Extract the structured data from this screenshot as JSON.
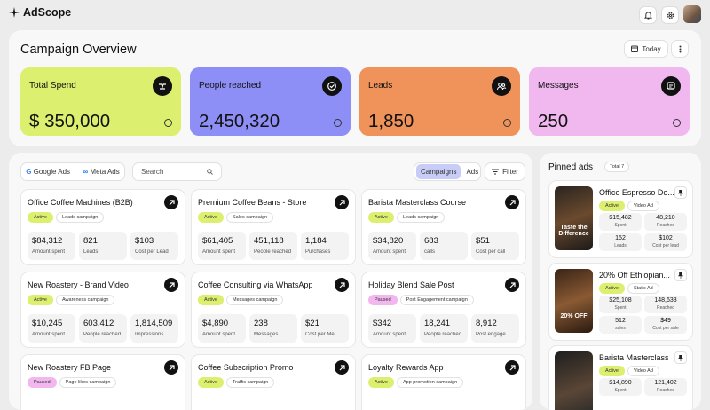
{
  "header": {
    "brand": "AdScope"
  },
  "overview": {
    "title": "Campaign Overview",
    "date": "Today",
    "kpis": [
      {
        "label": "Total Spend",
        "value": "$ 350,000"
      },
      {
        "label": "People reached",
        "value": "2,450,320"
      },
      {
        "label": "Leads",
        "value": "1,850"
      },
      {
        "label": "Messages",
        "value": "250"
      }
    ]
  },
  "toolbar": {
    "sources": [
      "Google Ads",
      "Meta Ads"
    ],
    "search": "Search",
    "views": [
      "Campaigns",
      "Ads"
    ],
    "filter": "Filter"
  },
  "campaigns": [
    {
      "title": "Office Coffee Machines (B2B)",
      "status": "Active",
      "type": "Leads campaign",
      "metrics": [
        {
          "value": "$84,312",
          "label": "Amount spent"
        },
        {
          "value": "821",
          "label": "Leads"
        },
        {
          "value": "$103",
          "label": "Cost per Lead"
        }
      ]
    },
    {
      "title": "Premium Coffee Beans - Store",
      "status": "Active",
      "type": "Sales campaign",
      "metrics": [
        {
          "value": "$61,405",
          "label": "Amount spent"
        },
        {
          "value": "451,118",
          "label": "People reached"
        },
        {
          "value": "1,184",
          "label": "Purchases"
        }
      ]
    },
    {
      "title": "Barista Masterclass Course",
      "status": "Active",
      "type": "Leads campaign",
      "metrics": [
        {
          "value": "$34,820",
          "label": "Amount spent"
        },
        {
          "value": "683",
          "label": "calls"
        },
        {
          "value": "$51",
          "label": "Cost per call"
        }
      ]
    },
    {
      "title": "New Roastery - Brand Video",
      "status": "Active",
      "type": "Awareness campaign",
      "metrics": [
        {
          "value": "$10,245",
          "label": "Amount spent"
        },
        {
          "value": "603,412",
          "label": "People reached"
        },
        {
          "value": "1,814,509",
          "label": "Impressions"
        }
      ]
    },
    {
      "title": "Coffee Consulting via WhatsApp",
      "status": "Active",
      "type": "Messages campaign",
      "metrics": [
        {
          "value": "$4,890",
          "label": "Amount spent"
        },
        {
          "value": "238",
          "label": "Messages"
        },
        {
          "value": "$21",
          "label": "Cost per Me..."
        }
      ]
    },
    {
      "title": "Holiday Blend Sale Post",
      "status": "Paused",
      "type": "Post Engagement campaign",
      "metrics": [
        {
          "value": "$342",
          "label": "Amount spent"
        },
        {
          "value": "18,241",
          "label": "People reached"
        },
        {
          "value": "8,912",
          "label": "Post engage..."
        }
      ]
    },
    {
      "title": "New Roastery FB Page",
      "status": "Paused",
      "type": "Page likes campaign",
      "metrics": []
    },
    {
      "title": "Coffee Subscription Promo",
      "status": "Active",
      "type": "Traffic campaign",
      "metrics": []
    },
    {
      "title": "Loyalty Rewards App",
      "status": "Active",
      "type": "App promotion campaign",
      "metrics": []
    }
  ],
  "pinned": {
    "title": "Pinned ads",
    "count": "Total 7",
    "ads": [
      {
        "title": "Office Espresso De...",
        "status": "Active",
        "type": "Video Ad",
        "image_text": "Taste the Difference",
        "metrics": [
          {
            "value": "$15,482",
            "label": "Spent"
          },
          {
            "value": "48,210",
            "label": "Reached"
          },
          {
            "value": "152",
            "label": "Leads"
          },
          {
            "value": "$102",
            "label": "Cost per lead"
          }
        ]
      },
      {
        "title": "20% Off Ethiopian...",
        "status": "Active",
        "type": "Static Ad",
        "image_text": "20% OFF",
        "metrics": [
          {
            "value": "$25,108",
            "label": "Spent"
          },
          {
            "value": "148,633",
            "label": "Reached"
          },
          {
            "value": "512",
            "label": "sales"
          },
          {
            "value": "$49",
            "label": "Cost per sale"
          }
        ]
      },
      {
        "title": "Barista Masterclass",
        "status": "Active",
        "type": "Video Ad",
        "metrics": [
          {
            "value": "$14,890",
            "label": "Spent"
          },
          {
            "value": "121,402",
            "label": "Reached"
          }
        ]
      }
    ]
  }
}
